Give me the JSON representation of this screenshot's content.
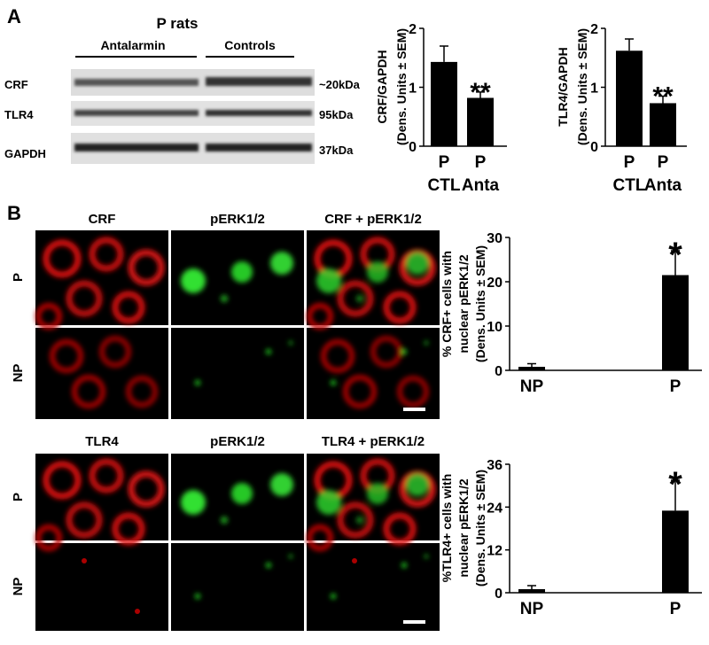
{
  "panel_a": {
    "label": "A",
    "title": "P rats",
    "groups": [
      "Antalarmin",
      "Controls"
    ],
    "bands": [
      {
        "name": "CRF",
        "size": "~20kDa"
      },
      {
        "name": "TLR4",
        "size": "95kDa"
      },
      {
        "name": "GAPDH",
        "size": "37kDa"
      }
    ]
  },
  "panel_b": {
    "label": "B",
    "sets": [
      {
        "columns": [
          "CRF",
          "pERK1/2",
          "CRF + pERK1/2"
        ],
        "rows": [
          "P",
          "NP"
        ]
      },
      {
        "columns": [
          "TLR4",
          "pERK1/2",
          "TLR4 + pERK1/2"
        ],
        "rows": [
          "P",
          "NP"
        ]
      }
    ]
  },
  "chart_data": [
    {
      "type": "bar",
      "ylabel": [
        "CRF/GAPDH",
        "(Dens. Units ± SEM)"
      ],
      "categories": [
        "P",
        "P"
      ],
      "groups": [
        "CTL",
        "Anta"
      ],
      "values": [
        1.43,
        0.82
      ],
      "errors": [
        0.27,
        0.1
      ],
      "color": "#000000",
      "ylim": [
        0,
        2
      ],
      "yticks": [
        0,
        1,
        2
      ],
      "significance": "**"
    },
    {
      "type": "bar",
      "ylabel": [
        "TLR4/GAPDH",
        "(Dens. Units ± SEM)"
      ],
      "categories": [
        "P",
        "P"
      ],
      "groups": [
        "CTL",
        "Anta"
      ],
      "values": [
        1.62,
        0.73
      ],
      "errors": [
        0.2,
        0.12
      ],
      "color": "#000000",
      "ylim": [
        0,
        2
      ],
      "yticks": [
        0,
        1,
        2
      ],
      "significance": "**"
    },
    {
      "type": "bar",
      "ylabel": [
        "% CRF+ cells with",
        "nuclear pERK1/2",
        "(Dens. Units ± SEM)"
      ],
      "categories": [
        "NP",
        "P"
      ],
      "values": [
        0.8,
        21.5
      ],
      "errors": [
        0.7,
        5.5
      ],
      "color": "#000000",
      "ylim": [
        0,
        30
      ],
      "yticks": [
        0,
        10,
        20,
        30
      ],
      "significance": "*"
    },
    {
      "type": "bar",
      "ylabel": [
        "%TLR4+ cells with",
        "nuclear pERK1/2",
        "(Dens. Units ± SEM)"
      ],
      "categories": [
        "NP",
        "P"
      ],
      "values": [
        1,
        23
      ],
      "errors": [
        1,
        8.5
      ],
      "color": "#000000",
      "ylim": [
        0,
        36
      ],
      "yticks": [
        0,
        12,
        24,
        36
      ],
      "significance": "*"
    }
  ]
}
